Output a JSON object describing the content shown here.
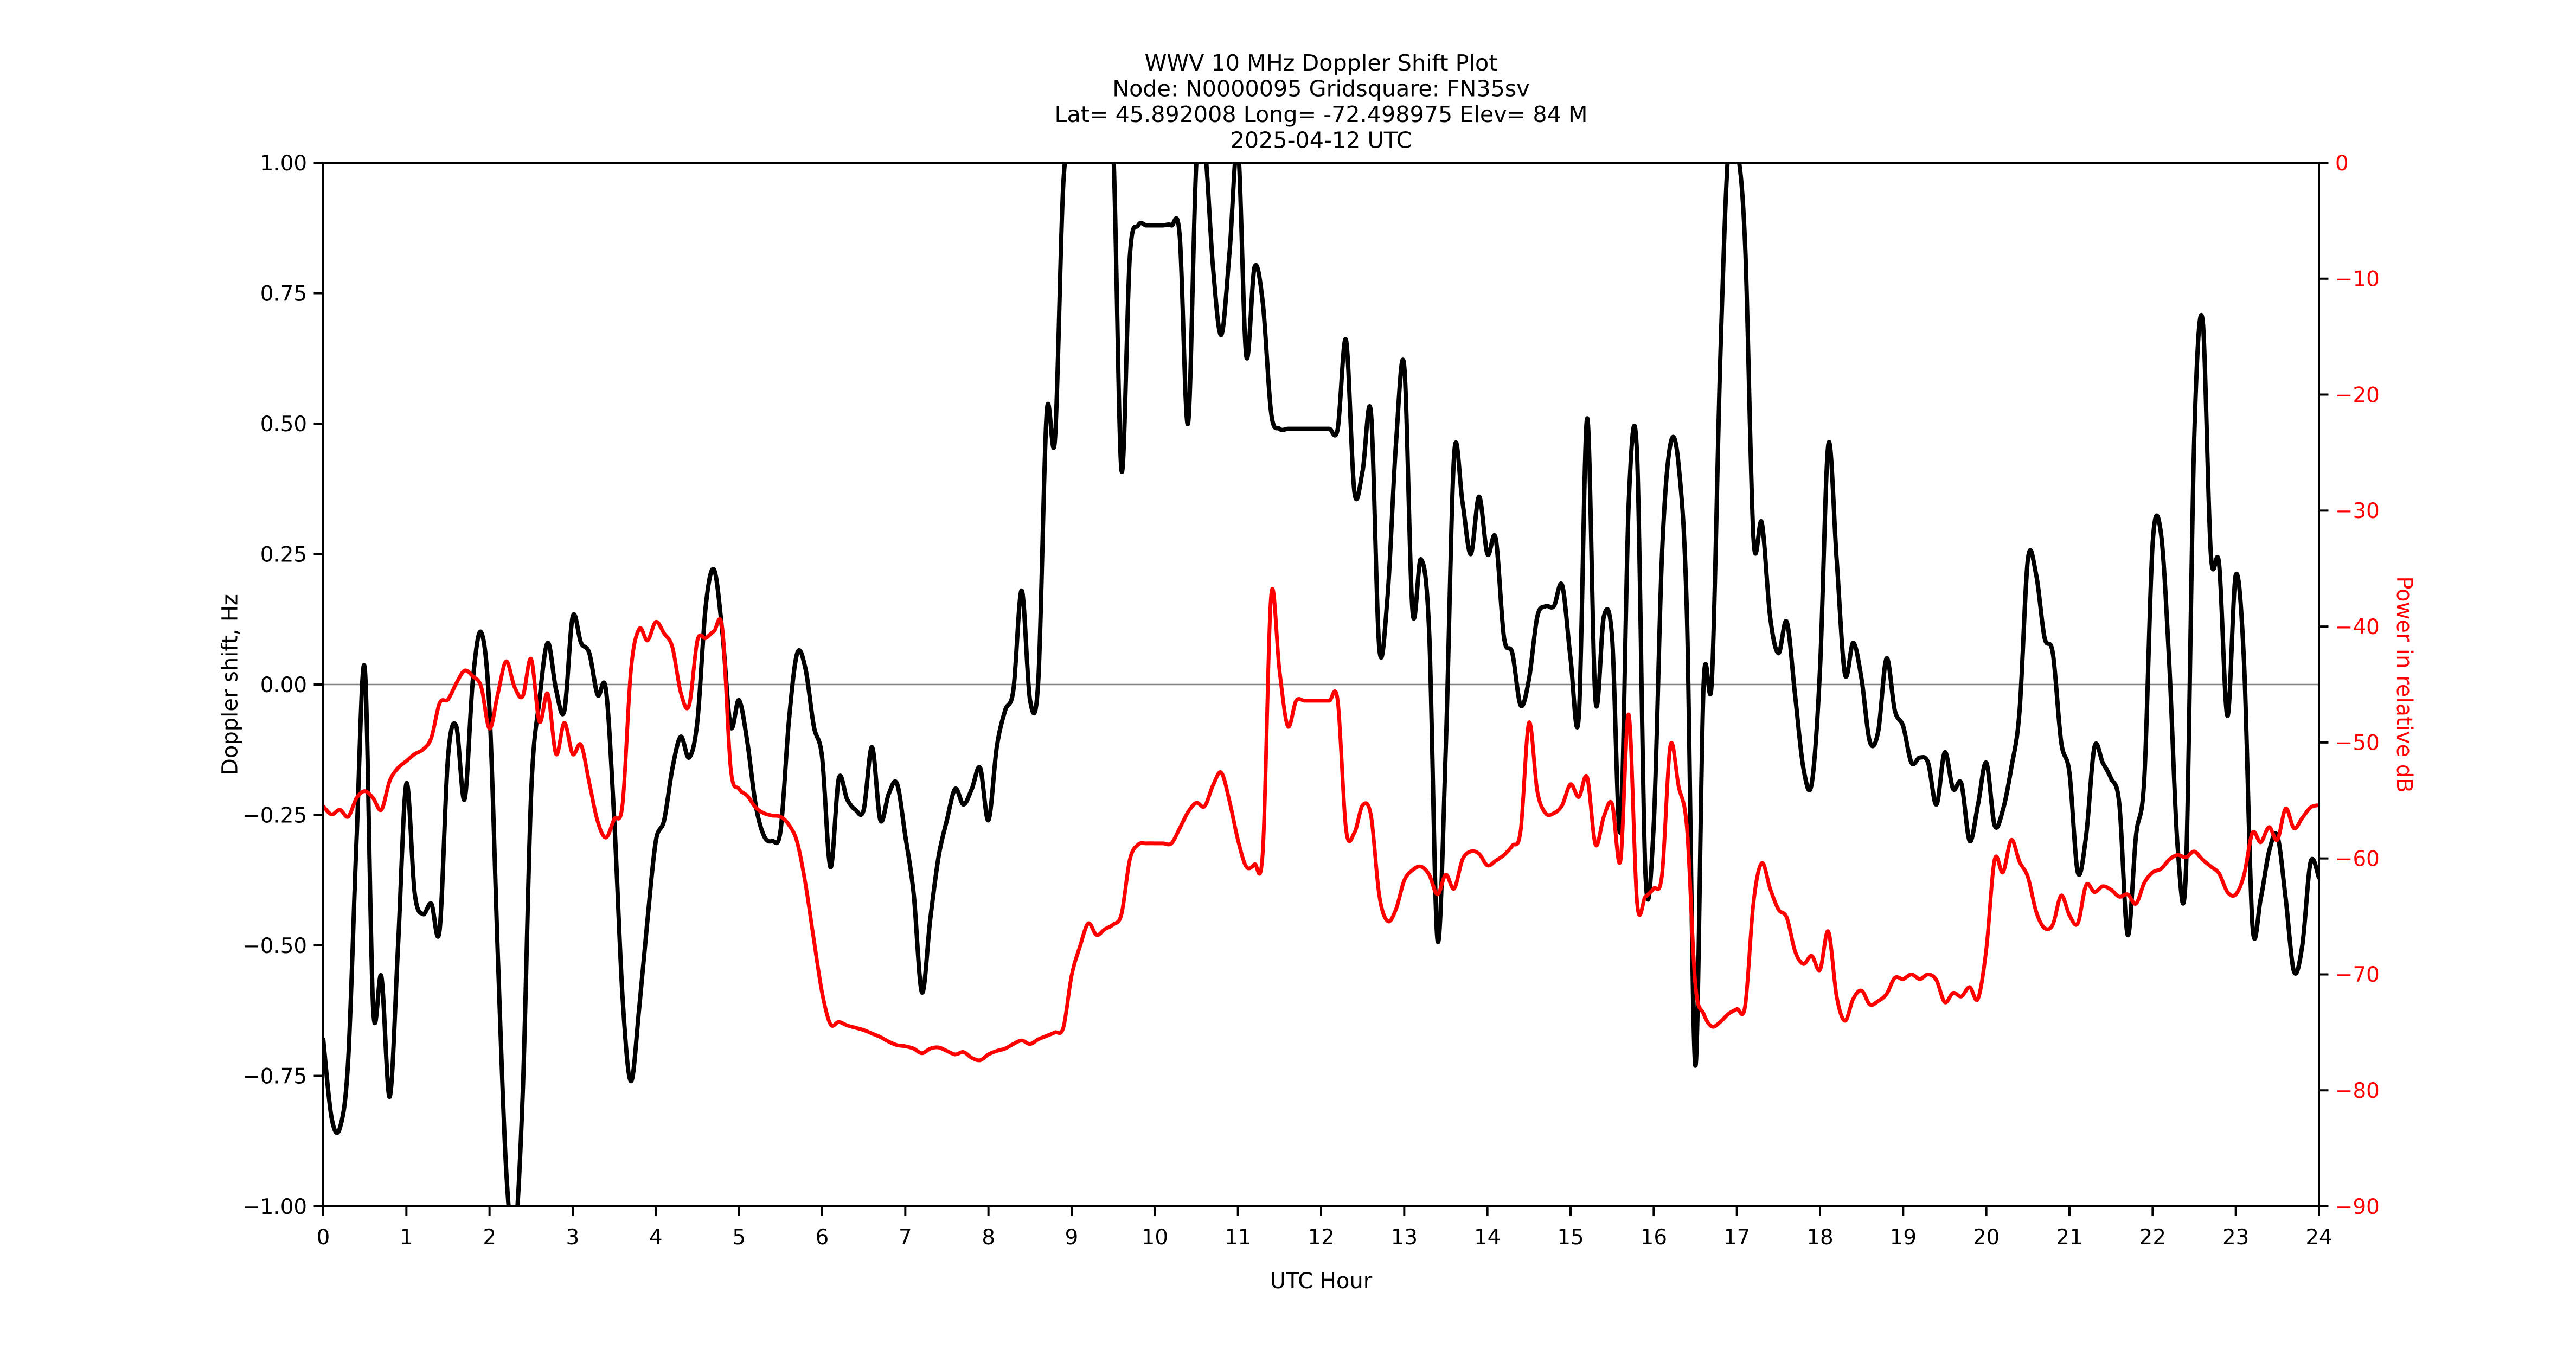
{
  "title": {
    "line1": "WWV 10 MHz Doppler Shift Plot",
    "line2": "Node:  N0000095     Gridsquare:  FN35sv",
    "line3": "Lat= 45.892008    Long= -72.498975    Elev= 84 M",
    "line4": "2025-04-12  UTC"
  },
  "chart_data": {
    "type": "line",
    "title": "WWV 10 MHz Doppler Shift Plot",
    "xlabel": "UTC Hour",
    "x_range": [
      0,
      24
    ],
    "x_step": 0.1,
    "x_ticks": [
      0,
      1,
      2,
      3,
      4,
      5,
      6,
      7,
      8,
      9,
      10,
      11,
      12,
      13,
      14,
      15,
      16,
      17,
      18,
      19,
      20,
      21,
      22,
      23,
      24
    ],
    "x_tick_labels": [
      "0",
      "1",
      "2",
      "3",
      "4",
      "5",
      "6",
      "7",
      "8",
      "9",
      "10",
      "11",
      "12",
      "13",
      "14",
      "15",
      "16",
      "17",
      "18",
      "19",
      "20",
      "21",
      "22",
      "23",
      "24"
    ],
    "y_left": {
      "label": "Doppler shift, Hz",
      "range": [
        -1.0,
        1.0
      ],
      "ticks": [
        1.0,
        0.75,
        0.5,
        0.25,
        0.0,
        -0.25,
        -0.5,
        -0.75,
        -1.0
      ],
      "tick_labels": [
        "1.00",
        "0.75",
        "0.50",
        "0.25",
        "0.00",
        "−0.25",
        "−0.50",
        "−0.75",
        "−1.00"
      ]
    },
    "y_right": {
      "label": "Power in relative dB",
      "range": [
        -90,
        0
      ],
      "ticks": [
        0,
        -10,
        -20,
        -30,
        -40,
        -50,
        -60,
        -70,
        -80,
        -90
      ],
      "tick_labels": [
        "0",
        "−10",
        "−20",
        "−30",
        "−40",
        "−50",
        "−60",
        "−70",
        "−80",
        "−90"
      ]
    },
    "zero_line": {
      "value": 0.0,
      "color": "#808080"
    },
    "colors": {
      "doppler": "#000000",
      "power": "#ff0000",
      "spine": "#000000",
      "background": "#ffffff"
    },
    "legend": "none",
    "grid": "zero-line-only",
    "series": [
      {
        "name": "doppler_shift_hz",
        "axis": "left",
        "color": "#000000",
        "stroke_width": 3.2,
        "values": [
          -0.68,
          -0.83,
          -0.85,
          -0.72,
          -0.3,
          0.03,
          -0.62,
          -0.56,
          -0.79,
          -0.5,
          -0.19,
          -0.4,
          -0.44,
          -0.42,
          -0.47,
          -0.14,
          -0.08,
          -0.22,
          0.01,
          0.1,
          -0.05,
          -0.52,
          -0.93,
          -1.06,
          -0.78,
          -0.21,
          -0.03,
          0.08,
          -0.01,
          -0.05,
          0.13,
          0.08,
          0.06,
          -0.02,
          -0.01,
          -0.26,
          -0.6,
          -0.76,
          -0.62,
          -0.45,
          -0.3,
          -0.26,
          -0.16,
          -0.1,
          -0.14,
          -0.07,
          0.15,
          0.22,
          0.1,
          -0.08,
          -0.03,
          -0.11,
          -0.23,
          -0.29,
          -0.3,
          -0.28,
          -0.07,
          0.06,
          0.03,
          -0.08,
          -0.14,
          -0.35,
          -0.18,
          -0.22,
          -0.24,
          -0.24,
          -0.12,
          -0.26,
          -0.21,
          -0.19,
          -0.29,
          -0.4,
          -0.59,
          -0.45,
          -0.33,
          -0.26,
          -0.2,
          -0.23,
          -0.2,
          -0.16,
          -0.26,
          -0.12,
          -0.05,
          -0.01,
          0.18,
          -0.03,
          0.01,
          0.52,
          0.47,
          0.96,
          1.03,
          1.03,
          1.03,
          1.03,
          1.03,
          1.03,
          0.41,
          0.82,
          0.88,
          0.88,
          0.88,
          0.88,
          0.88,
          0.86,
          0.5,
          1.0,
          1.03,
          0.8,
          0.67,
          0.83,
          1.03,
          0.63,
          0.8,
          0.73,
          0.52,
          0.49,
          0.49,
          0.49,
          0.49,
          0.49,
          0.49,
          0.49,
          0.49,
          0.66,
          0.37,
          0.41,
          0.52,
          0.07,
          0.17,
          0.46,
          0.61,
          0.14,
          0.24,
          0.1,
          -0.49,
          -0.12,
          0.44,
          0.35,
          0.25,
          0.36,
          0.25,
          0.28,
          0.09,
          0.06,
          -0.04,
          0.01,
          0.13,
          0.15,
          0.15,
          0.19,
          0.05,
          -0.06,
          0.51,
          -0.03,
          0.13,
          0.09,
          -0.28,
          0.35,
          0.44,
          -0.36,
          -0.27,
          0.25,
          0.46,
          0.42,
          0.13,
          -0.73,
          0.0,
          0.01,
          0.62,
          1.03,
          1.03,
          0.84,
          0.28,
          0.31,
          0.13,
          0.06,
          0.12,
          -0.02,
          -0.16,
          -0.19,
          0.03,
          0.46,
          0.24,
          0.02,
          0.08,
          0.01,
          -0.11,
          -0.09,
          0.05,
          -0.05,
          -0.08,
          -0.15,
          -0.14,
          -0.15,
          -0.23,
          -0.13,
          -0.2,
          -0.19,
          -0.3,
          -0.23,
          -0.15,
          -0.27,
          -0.24,
          -0.16,
          -0.05,
          0.24,
          0.21,
          0.09,
          0.06,
          -0.11,
          -0.17,
          -0.36,
          -0.29,
          -0.12,
          -0.15,
          -0.18,
          -0.23,
          -0.48,
          -0.29,
          -0.18,
          0.27,
          0.29,
          0.04,
          -0.31,
          -0.36,
          0.47,
          0.7,
          0.25,
          0.23,
          -0.06,
          0.21,
          0.04,
          -0.46,
          -0.41,
          -0.32,
          -0.29,
          -0.41,
          -0.55,
          -0.5,
          -0.34,
          -0.37
        ]
      },
      {
        "name": "power_relative_db",
        "axis": "right",
        "color": "#ff0000",
        "stroke_width": 2.8,
        "values": [
          -55.5,
          -56.2,
          -55.8,
          -56.4,
          -54.8,
          -54.2,
          -54.8,
          -55.8,
          -53.3,
          -52.2,
          -51.6,
          -51.0,
          -50.6,
          -49.6,
          -46.6,
          -46.3,
          -44.9,
          -43.8,
          -44.3,
          -45.2,
          -48.8,
          -45.8,
          -43.0,
          -45.2,
          -46.0,
          -42.8,
          -48.2,
          -45.8,
          -51.0,
          -48.3,
          -51.0,
          -50.2,
          -53.5,
          -56.8,
          -58.2,
          -56.6,
          -55.3,
          -43.8,
          -40.2,
          -41.2,
          -39.6,
          -40.6,
          -41.8,
          -45.7,
          -46.8,
          -41.2,
          -41.0,
          -40.4,
          -40.2,
          -52.2,
          -54.0,
          -54.6,
          -55.6,
          -56.1,
          -56.3,
          -56.4,
          -57.1,
          -58.6,
          -62.2,
          -67.0,
          -71.6,
          -74.3,
          -74.1,
          -74.4,
          -74.6,
          -74.8,
          -75.1,
          -75.4,
          -75.8,
          -76.1,
          -76.2,
          -76.4,
          -76.8,
          -76.4,
          -76.3,
          -76.6,
          -76.9,
          -76.7,
          -77.2,
          -77.4,
          -76.9,
          -76.6,
          -76.4,
          -76.0,
          -75.7,
          -76.0,
          -75.6,
          -75.3,
          -75.0,
          -74.6,
          -70.1,
          -67.6,
          -65.6,
          -66.6,
          -66.1,
          -65.7,
          -64.8,
          -60.1,
          -58.8,
          -58.7,
          -58.7,
          -58.7,
          -58.7,
          -57.4,
          -56.0,
          -55.2,
          -55.5,
          -53.7,
          -52.6,
          -55.1,
          -58.4,
          -60.7,
          -60.5,
          -59.3,
          -37.3,
          -43.8,
          -48.6,
          -46.4,
          -46.4,
          -46.4,
          -46.4,
          -46.4,
          -46.4,
          -57.5,
          -57.8,
          -55.4,
          -56.3,
          -63.2,
          -65.4,
          -64.4,
          -61.9,
          -61.0,
          -60.7,
          -61.4,
          -63.1,
          -61.4,
          -62.6,
          -60.1,
          -59.4,
          -59.6,
          -60.6,
          -60.2,
          -59.7,
          -58.9,
          -57.6,
          -48.3,
          -54.2,
          -56.1,
          -56.1,
          -55.4,
          -53.6,
          -54.7,
          -53.0,
          -58.8,
          -56.4,
          -55.3,
          -60.2,
          -47.6,
          -63.8,
          -63.3,
          -62.6,
          -61.4,
          -50.3,
          -53.8,
          -57.4,
          -70.8,
          -73.4,
          -74.5,
          -74.1,
          -73.4,
          -73.0,
          -72.7,
          -63.8,
          -60.4,
          -62.6,
          -64.4,
          -65.1,
          -68.0,
          -69.1,
          -68.4,
          -69.6,
          -66.3,
          -71.9,
          -74.0,
          -72.1,
          -71.4,
          -72.6,
          -72.3,
          -71.7,
          -70.3,
          -70.4,
          -70.0,
          -70.4,
          -70.0,
          -70.5,
          -72.4,
          -71.6,
          -71.9,
          -71.1,
          -72.1,
          -67.8,
          -60.1,
          -61.2,
          -58.4,
          -60.3,
          -61.6,
          -64.6,
          -66.0,
          -65.7,
          -63.2,
          -64.9,
          -65.6,
          -62.3,
          -62.9,
          -62.4,
          -62.7,
          -63.3,
          -63.1,
          -63.9,
          -62.1,
          -61.2,
          -60.9,
          -60.1,
          -59.7,
          -59.9,
          -59.4,
          -60.1,
          -60.7,
          -61.3,
          -62.9,
          -63.1,
          -61.4,
          -57.8,
          -58.6,
          -57.3,
          -58.4,
          -55.7,
          -57.4,
          -56.5,
          -55.6,
          -55.4
        ]
      }
    ]
  }
}
